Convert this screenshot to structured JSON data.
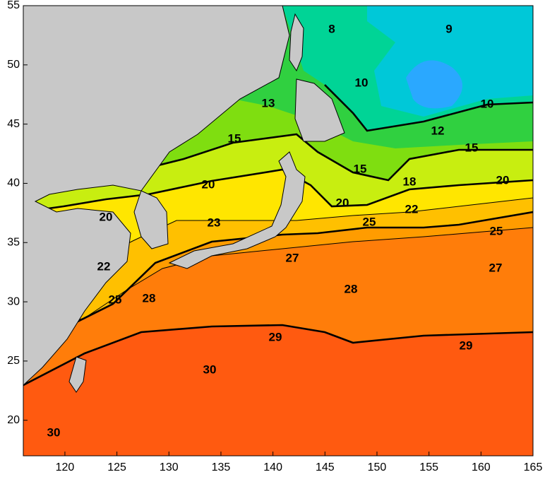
{
  "chart_data": {
    "type": "map",
    "xlim": [
      116,
      165
    ],
    "ylim": [
      17,
      55
    ],
    "xticks": [
      120,
      125,
      130,
      135,
      140,
      145,
      150,
      155,
      160,
      165
    ],
    "yticks": [
      20,
      25,
      30,
      35,
      40,
      45,
      50,
      55
    ],
    "contour_labels": [
      8,
      9,
      10,
      10,
      13,
      12,
      15,
      15,
      15,
      18,
      20,
      20,
      20,
      20,
      22,
      22,
      23,
      25,
      25,
      25,
      27,
      27,
      28,
      28,
      29,
      29,
      30,
      30
    ]
  }
}
